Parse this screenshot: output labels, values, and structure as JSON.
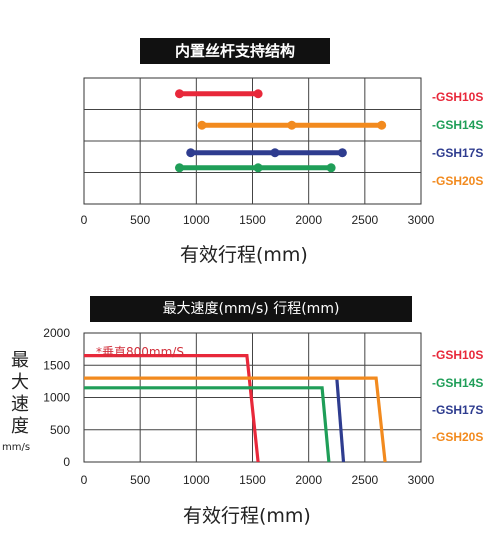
{
  "colors": {
    "GSH10S": "#e8283a",
    "GSH14S": "#1f9e58",
    "GSH17S": "#2e3c8f",
    "GSH20S": "#f28a1e"
  },
  "chart_data": [
    {
      "type": "range-bar",
      "title": "内置丝杆支持结构",
      "xlabel": "有效行程(mm)",
      "ylabel": "",
      "xlim": [
        0,
        3000
      ],
      "xticks": [
        "0",
        "500",
        "1000",
        "1500",
        "2000",
        "2500",
        "3000"
      ],
      "grid": true,
      "legend": [
        "-GSH10S",
        "-GSH14S",
        "-GSH17S",
        "-GSH20S"
      ],
      "legend_position": "right",
      "series": [
        {
          "name": "-GSH10S",
          "color": "#e8283a",
          "row": 0,
          "points": [
            850,
            1550
          ]
        },
        {
          "name": "-GSH20S",
          "color": "#f28a1e",
          "row": 1,
          "points": [
            1050,
            1850,
            2650
          ]
        },
        {
          "name": "-GSH17S",
          "color": "#2e3c8f",
          "row": 2,
          "points": [
            950,
            1700,
            2300
          ]
        },
        {
          "name": "-GSH14S",
          "color": "#1f9e58",
          "row": 2.35,
          "points": [
            850,
            1550,
            2200
          ]
        }
      ]
    },
    {
      "type": "line",
      "title": "最大速度(mm/s)  行程(mm)",
      "xlabel": "有效行程(mm)",
      "ylabel": [
        "最",
        "大",
        "速",
        "度"
      ],
      "yunit": "mm/s",
      "annotation": "*垂直800mm/S",
      "xlim": [
        0,
        3000
      ],
      "ylim": [
        0,
        2000
      ],
      "xticks": [
        "0",
        "500",
        "1000",
        "1500",
        "2000",
        "2500",
        "3000"
      ],
      "yticks": [
        "0",
        "500",
        "1000",
        "1500",
        "2000"
      ],
      "grid": true,
      "legend": [
        "-GSH10S",
        "-GSH14S",
        "-GSH17S",
        "-GSH20S"
      ],
      "legend_position": "right",
      "series": [
        {
          "name": "-GSH10S",
          "color": "#e8283a",
          "x": [
            0,
            1450,
            1550
          ],
          "y": [
            1650,
            1650,
            0
          ]
        },
        {
          "name": "-GSH14S",
          "color": "#1f9e58",
          "x": [
            0,
            2120,
            2180
          ],
          "y": [
            1150,
            1150,
            0
          ]
        },
        {
          "name": "-GSH17S",
          "color": "#2e3c8f",
          "x": [
            2250,
            2310
          ],
          "y": [
            1300,
            0
          ]
        },
        {
          "name": "-GSH20S",
          "color": "#f28a1e",
          "x": [
            0,
            2600,
            2680
          ],
          "y": [
            1300,
            1300,
            0
          ]
        }
      ]
    }
  ]
}
